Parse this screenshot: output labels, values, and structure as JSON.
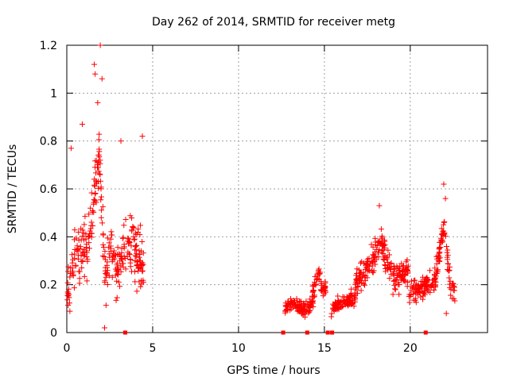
{
  "chart_data": {
    "type": "scatter",
    "title": "Day 262 of 2014, SRMTID for receiver metg",
    "xlabel": "GPS time / hours",
    "ylabel": "SRMTID / TECUs",
    "xlim": [
      0,
      24.5
    ],
    "ylim": [
      0,
      1.2
    ],
    "x_ticks": [
      0,
      5,
      10,
      15,
      20
    ],
    "x_tick_labels": [
      "0",
      "5",
      "10",
      "15",
      "20"
    ],
    "y_ticks": [
      0,
      0.2,
      0.4,
      0.6,
      0.8,
      1.0,
      1.2
    ],
    "y_tick_labels": [
      "0",
      "0.2",
      "0.4",
      "0.6",
      "0.8",
      "1",
      "1.2"
    ],
    "grid": true,
    "series_color": "#ff0000",
    "segments": [
      {
        "start": 0.0,
        "end": 4.5,
        "peaks": [
          [
            0.05,
            0.12
          ],
          [
            0.5,
            0.35
          ],
          [
            1.0,
            0.35
          ],
          [
            1.4,
            0.4
          ],
          [
            1.9,
            0.75
          ],
          [
            2.2,
            0.25
          ],
          [
            2.6,
            0.35
          ],
          [
            3.0,
            0.25
          ],
          [
            3.5,
            0.4
          ],
          [
            4.0,
            0.35
          ],
          [
            4.5,
            0.25
          ]
        ],
        "spread": 0.18
      },
      {
        "start": 12.7,
        "end": 14.3,
        "peaks": [
          [
            12.7,
            0.1
          ],
          [
            13.2,
            0.12
          ],
          [
            13.8,
            0.1
          ],
          [
            14.3,
            0.12
          ]
        ],
        "spread": 0.04
      },
      {
        "start": 14.3,
        "end": 15.1,
        "peaks": [
          [
            14.3,
            0.15
          ],
          [
            14.6,
            0.25
          ],
          [
            15.0,
            0.18
          ]
        ],
        "spread": 0.07
      },
      {
        "start": 15.4,
        "end": 16.8,
        "peaks": [
          [
            15.4,
            0.1
          ],
          [
            16.0,
            0.12
          ],
          [
            16.8,
            0.15
          ]
        ],
        "spread": 0.05
      },
      {
        "start": 16.8,
        "end": 19.9,
        "peaks": [
          [
            16.8,
            0.2
          ],
          [
            17.4,
            0.25
          ],
          [
            18.3,
            0.38
          ],
          [
            19.0,
            0.22
          ],
          [
            19.7,
            0.25
          ]
        ],
        "spread": 0.09
      },
      {
        "start": 19.9,
        "end": 21.5,
        "peaks": [
          [
            19.9,
            0.15
          ],
          [
            20.5,
            0.18
          ],
          [
            21.0,
            0.2
          ],
          [
            21.5,
            0.22
          ]
        ],
        "spread": 0.07
      },
      {
        "start": 21.5,
        "end": 22.6,
        "peaks": [
          [
            21.5,
            0.25
          ],
          [
            22.0,
            0.45
          ],
          [
            22.3,
            0.22
          ],
          [
            22.6,
            0.18
          ]
        ],
        "spread": 0.08
      }
    ],
    "outliers": [
      {
        "x": 1.95,
        "y": 1.2
      },
      {
        "x": 1.6,
        "y": 1.12
      },
      {
        "x": 1.65,
        "y": 1.08
      },
      {
        "x": 2.05,
        "y": 1.06
      },
      {
        "x": 1.8,
        "y": 0.96
      },
      {
        "x": 0.9,
        "y": 0.87
      },
      {
        "x": 3.15,
        "y": 0.8
      },
      {
        "x": 4.4,
        "y": 0.82
      },
      {
        "x": 0.25,
        "y": 0.77
      },
      {
        "x": 21.95,
        "y": 0.62
      },
      {
        "x": 22.05,
        "y": 0.56
      },
      {
        "x": 18.2,
        "y": 0.53
      },
      {
        "x": 2.2,
        "y": 0.02
      },
      {
        "x": 22.1,
        "y": 0.08
      }
    ],
    "zero_markers": [
      3.4,
      12.6,
      14.0,
      15.2,
      15.45,
      20.9
    ]
  }
}
